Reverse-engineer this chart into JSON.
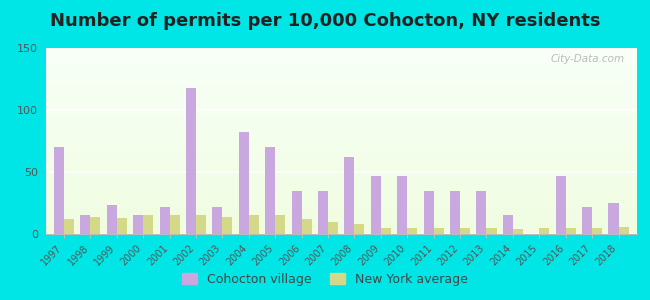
{
  "years": [
    1997,
    1998,
    1999,
    2000,
    2001,
    2002,
    2003,
    2004,
    2005,
    2006,
    2007,
    2008,
    2009,
    2010,
    2011,
    2012,
    2013,
    2014,
    2015,
    2016,
    2017,
    2018
  ],
  "cohocton": [
    70,
    15,
    23,
    15,
    22,
    118,
    22,
    82,
    70,
    35,
    35,
    62,
    47,
    47,
    35,
    35,
    35,
    15,
    0,
    47,
    22,
    25
  ],
  "ny_avg": [
    12,
    14,
    13,
    15,
    15,
    15,
    14,
    15,
    15,
    12,
    10,
    8,
    5,
    5,
    5,
    5,
    5,
    4,
    5,
    5,
    5,
    6
  ],
  "cohocton_color": "#c9a8e0",
  "ny_avg_color": "#d4d98a",
  "bg_outer": "#00e5e5",
  "title": "Number of permits per 10,000 Cohocton, NY residents",
  "title_fontsize": 13,
  "ylim": [
    0,
    150
  ],
  "yticks": [
    0,
    50,
    100,
    150
  ],
  "bar_width": 0.38,
  "legend_cohocton": "Cohocton village",
  "legend_ny": "New York average",
  "watermark": "City-Data.com"
}
